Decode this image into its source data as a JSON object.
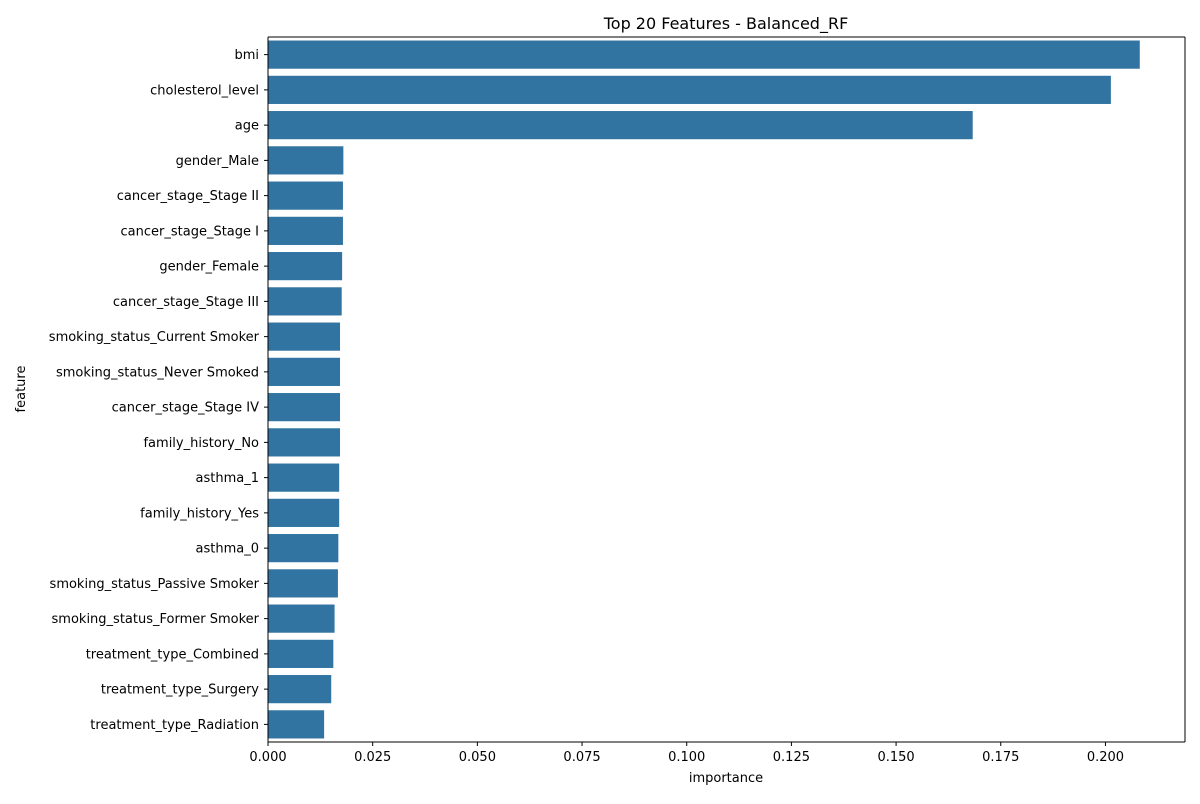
{
  "chart_data": {
    "type": "bar",
    "orientation": "horizontal",
    "title": "Top 20 Features - Balanced_RF",
    "xlabel": "importance",
    "ylabel": "feature",
    "xlim": [
      0,
      0.219
    ],
    "xticks": [
      "0.000",
      "0.025",
      "0.050",
      "0.075",
      "0.100",
      "0.125",
      "0.150",
      "0.175",
      "0.200"
    ],
    "grid": false,
    "legend": "none",
    "bar_color": "#3274a1",
    "categories": [
      "bmi",
      "cholesterol_level",
      "age",
      "gender_Male",
      "cancer_stage_Stage II",
      "cancer_stage_Stage I",
      "gender_Female",
      "cancer_stage_Stage III",
      "smoking_status_Current Smoker",
      "smoking_status_Never Smoked",
      "cancer_stage_Stage IV",
      "family_history_No",
      "asthma_1",
      "family_history_Yes",
      "asthma_0",
      "smoking_status_Passive Smoker",
      "smoking_status_Former Smoker",
      "treatment_type_Combined",
      "treatment_type_Surgery",
      "treatment_type_Radiation"
    ],
    "values": [
      0.2082,
      0.2013,
      0.1683,
      0.018,
      0.0179,
      0.0179,
      0.0177,
      0.0176,
      0.0172,
      0.0172,
      0.0172,
      0.0172,
      0.017,
      0.017,
      0.0168,
      0.0167,
      0.0159,
      0.0156,
      0.0151,
      0.0134
    ]
  }
}
